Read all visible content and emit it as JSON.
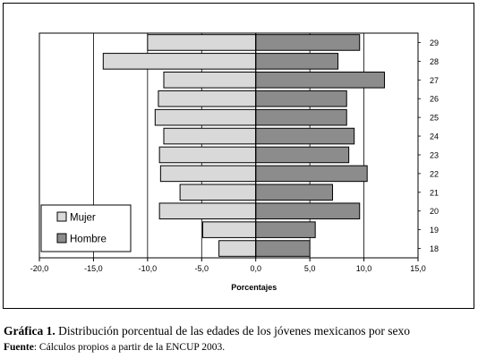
{
  "chart_data": {
    "type": "bar",
    "orientation": "horizontal",
    "subtype": "population-pyramid",
    "categories": [
      "18",
      "19",
      "20",
      "21",
      "22",
      "23",
      "24",
      "25",
      "26",
      "27",
      "28",
      "29"
    ],
    "series": [
      {
        "name": "Mujer",
        "color": "#d9d9d9",
        "values": [
          -3.4,
          -4.9,
          -8.9,
          -7.0,
          -8.8,
          -8.9,
          -8.5,
          -9.3,
          -9.0,
          -8.5,
          -14.1,
          -10.0
        ]
      },
      {
        "name": "Hombre",
        "color": "#8c8c8c",
        "values": [
          5.0,
          5.5,
          9.6,
          7.1,
          10.3,
          8.6,
          9.1,
          8.4,
          8.4,
          11.9,
          7.6,
          9.6
        ]
      }
    ],
    "xlabel": "Porcentajes",
    "xlim": [
      -20,
      15
    ],
    "xticks": [
      "-20,0",
      "-15,0",
      "-10,0",
      "-5,0",
      "0,0",
      "5,0",
      "10,0",
      "15,0"
    ],
    "grid": true,
    "legend_position": "bottom-left"
  },
  "caption": {
    "label": "Gráfica 1.",
    "text": " Distribución porcentual de las edades de los jóvenes mexicanos por sexo"
  },
  "source": {
    "label": "Fuente",
    "text": ": Cálculos propios a partir de la ENCUP 2003."
  }
}
